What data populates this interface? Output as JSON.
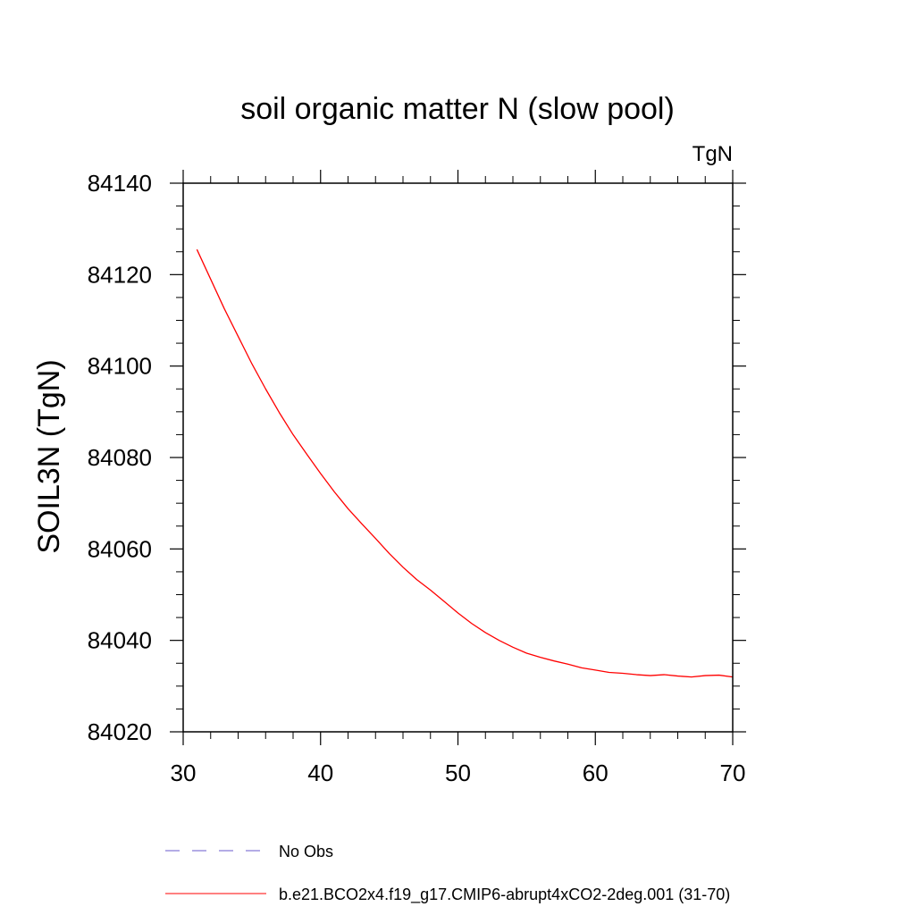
{
  "chart_data": {
    "type": "line",
    "title": "soil organic matter N (slow pool)",
    "units": "TgN",
    "xlabel": "",
    "ylabel": "SOIL3N  (TgN)",
    "xlim": [
      30,
      70
    ],
    "ylim": [
      84020,
      84140
    ],
    "x_ticks": [
      30,
      40,
      50,
      60,
      70
    ],
    "y_ticks": [
      84020,
      84040,
      84060,
      84080,
      84100,
      84120,
      84140
    ],
    "x_minor_step": 2,
    "y_minor_step": 5,
    "grid": false,
    "series": [
      {
        "name": "b.e21.BCO2x4.f19_g17.CMIP6-abrupt4xCO2-2deg.001 (31-70)",
        "color": "#ff0000",
        "dash": "solid",
        "x": [
          31,
          32,
          33,
          34,
          35,
          36,
          37,
          38,
          39,
          40,
          41,
          42,
          43,
          44,
          45,
          46,
          47,
          48,
          49,
          50,
          51,
          52,
          53,
          54,
          55,
          56,
          57,
          58,
          59,
          60,
          61,
          62,
          63,
          64,
          65,
          66,
          67,
          68,
          69,
          70
        ],
        "values": [
          84125.5,
          84119,
          84112.5,
          84106.5,
          84100.5,
          84095,
          84089.8,
          84085,
          84080.7,
          84076.5,
          84072.5,
          84068.8,
          84065.5,
          84062.3,
          84059,
          84056,
          84053.3,
          84051,
          84048.5,
          84046,
          84043.7,
          84041.7,
          84040,
          84038.5,
          84037.2,
          84036.3,
          84035.5,
          84034.8,
          84034,
          84033.5,
          84033,
          84032.8,
          84032.5,
          84032.3,
          84032.5,
          84032.2,
          84032,
          84032.3,
          84032.4,
          84032
        ]
      }
    ],
    "legend": {
      "placement": "bottom",
      "items": [
        {
          "label": "No Obs",
          "color": "#6a5acd",
          "dash": "dashed"
        },
        {
          "label": "b.e21.BCO2x4.f19_g17.CMIP6-abrupt4xCO2-2deg.001 (31-70)",
          "color": "#ff0000",
          "dash": "solid"
        }
      ]
    }
  }
}
